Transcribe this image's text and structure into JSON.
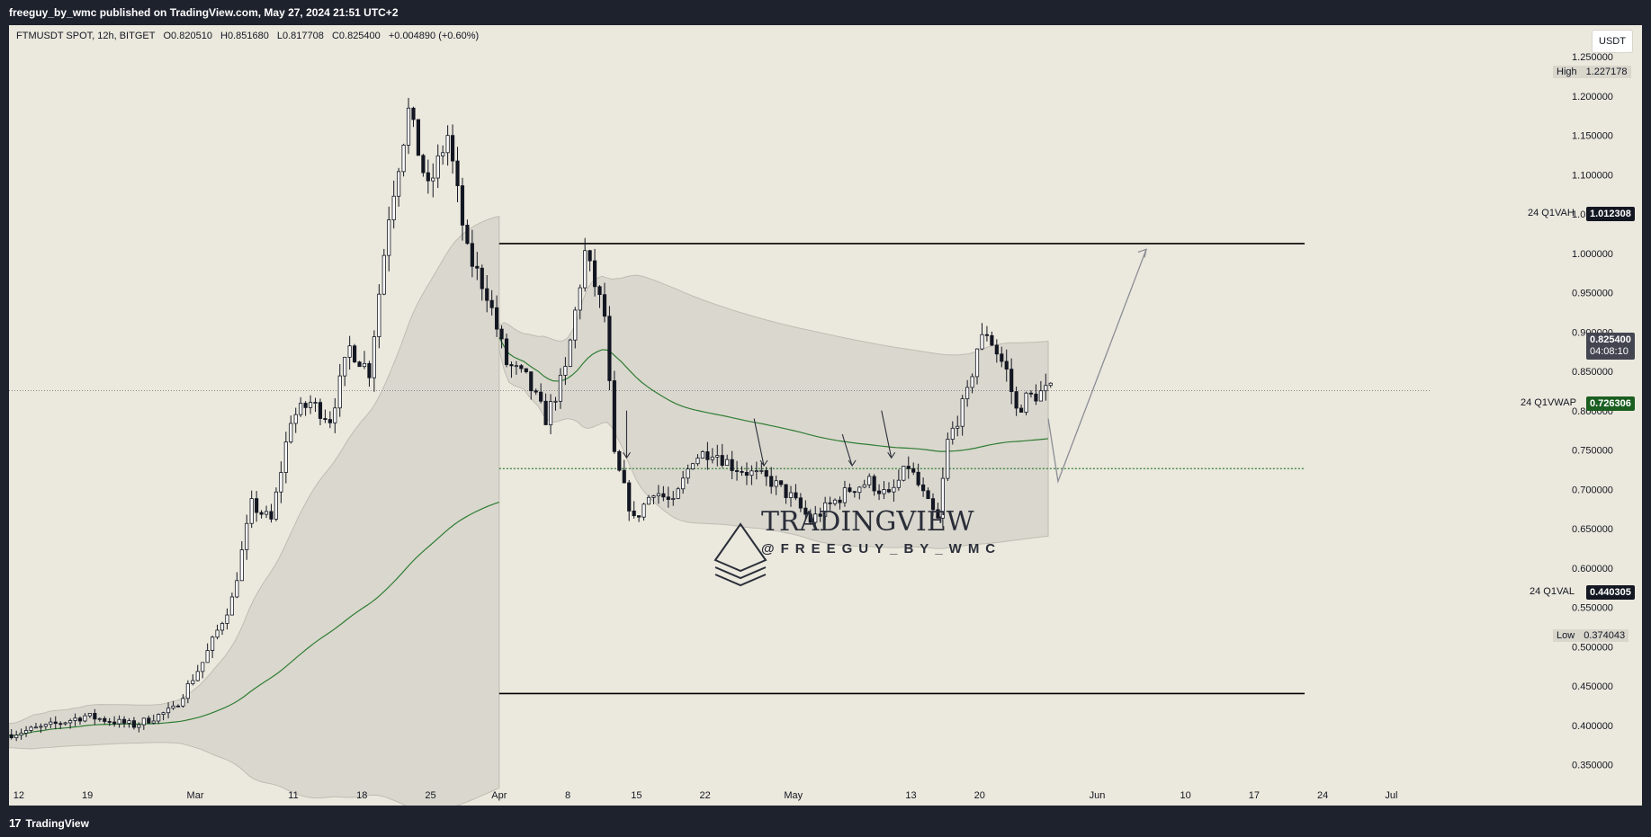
{
  "header": {
    "published_by": "freeguy_by_wmc published on TradingView.com, May 27, 2024 21:51 UTC+2"
  },
  "footer": {
    "brand": "TradingView",
    "logo_icon": "tradingview-logo-icon"
  },
  "symbol": {
    "name": "FTMUSDT SPOT, 12h, BITGET",
    "open": "O0.820510",
    "high": "H0.851680",
    "low": "L0.817708",
    "close": "C0.825400",
    "change": "+0.004890 (+0.60%)"
  },
  "currency_button": "USDT",
  "watermark": {
    "title": "TRADINGVIEW",
    "handle": "@FREEGUY_BY_WMC",
    "icon": "layered-triangle-logo-icon"
  },
  "levels": {
    "vah": {
      "label": "24 Q1VAH",
      "value": "1.012308"
    },
    "vwap": {
      "label": "24 Q1VWAP",
      "value": "0.726306"
    },
    "val": {
      "label": "24 Q1VAL",
      "value": "0.440305"
    }
  },
  "high_tag": {
    "label": "High",
    "value": "1.227178"
  },
  "low_tag": {
    "label": "Low",
    "value": "0.374043"
  },
  "last_price": {
    "value": "0.825400",
    "countdown": "04:08:10"
  },
  "colors": {
    "background": "#ebe8dd",
    "bull": "#ffffff",
    "bear": "#131722",
    "vwap_green": "#2e7d32",
    "band_fill": "#d8d5cc",
    "level_line": "#000000"
  },
  "chart_data": {
    "type": "candlestick",
    "y_scale": "linear",
    "ylim": [
      0.33,
      1.29
    ],
    "y_ticks": [
      "1.250000",
      "1.200000",
      "1.150000",
      "1.100000",
      "1.050000",
      "1.000000",
      "0.950000",
      "0.900000",
      "0.850000",
      "0.800000",
      "0.750000",
      "0.700000",
      "0.650000",
      "0.600000",
      "0.550000",
      "0.500000",
      "0.450000",
      "0.400000",
      "0.350000"
    ],
    "x_ticks": [
      "12",
      "19",
      "Mar",
      "11",
      "18",
      "25",
      "Apr",
      "8",
      "15",
      "22",
      "May",
      "13",
      "20",
      "Jun",
      "10",
      "17",
      "24",
      "Jul"
    ],
    "x_range": [
      "2024-02-11",
      "2024-07-05"
    ],
    "x_tick_dates": [
      "2024-02-12",
      "2024-02-19",
      "2024-03-01",
      "2024-03-11",
      "2024-03-18",
      "2024-03-25",
      "2024-04-01",
      "2024-04-08",
      "2024-04-15",
      "2024-04-22",
      "2024-05-01",
      "2024-05-13",
      "2024-05-20",
      "2024-06-01",
      "2024-06-10",
      "2024-06-17",
      "2024-06-24",
      "2024-07-01"
    ],
    "price_path": [
      [
        "2024-02-11",
        0.388
      ],
      [
        "2024-02-15",
        0.398
      ],
      [
        "2024-02-19",
        0.412
      ],
      [
        "2024-02-24",
        0.4
      ],
      [
        "2024-02-28",
        0.42
      ],
      [
        "2024-03-02",
        0.48
      ],
      [
        "2024-03-05",
        0.56
      ],
      [
        "2024-03-07",
        0.68
      ],
      [
        "2024-03-09",
        0.66
      ],
      [
        "2024-03-11",
        0.79
      ],
      [
        "2024-03-13",
        0.81
      ],
      [
        "2024-03-15",
        0.79
      ],
      [
        "2024-03-17",
        0.88
      ],
      [
        "2024-03-19",
        0.85
      ],
      [
        "2024-03-21",
        1.05
      ],
      [
        "2024-03-23",
        1.18
      ],
      [
        "2024-03-25",
        1.08
      ],
      [
        "2024-03-27",
        1.15
      ],
      [
        "2024-03-29",
        1.0
      ],
      [
        "2024-03-31",
        0.95
      ],
      [
        "2024-04-02",
        0.86
      ],
      [
        "2024-04-04",
        0.84
      ],
      [
        "2024-04-06",
        0.79
      ],
      [
        "2024-04-08",
        0.85
      ],
      [
        "2024-04-10",
        1.0
      ],
      [
        "2024-04-12",
        0.92
      ],
      [
        "2024-04-13",
        0.74
      ],
      [
        "2024-04-15",
        0.66
      ],
      [
        "2024-04-17",
        0.7
      ],
      [
        "2024-04-19",
        0.68
      ],
      [
        "2024-04-21",
        0.74
      ],
      [
        "2024-04-23",
        0.75
      ],
      [
        "2024-04-25",
        0.73
      ],
      [
        "2024-04-27",
        0.72
      ],
      [
        "2024-04-29",
        0.71
      ],
      [
        "2024-05-01",
        0.69
      ],
      [
        "2024-05-03",
        0.66
      ],
      [
        "2024-05-05",
        0.68
      ],
      [
        "2024-05-07",
        0.7
      ],
      [
        "2024-05-09",
        0.71
      ],
      [
        "2024-05-11",
        0.69
      ],
      [
        "2024-05-13",
        0.73
      ],
      [
        "2024-05-15",
        0.68
      ],
      [
        "2024-05-16",
        0.66
      ],
      [
        "2024-05-17",
        0.76
      ],
      [
        "2024-05-19",
        0.82
      ],
      [
        "2024-05-20",
        0.88
      ],
      [
        "2024-05-21",
        0.9
      ],
      [
        "2024-05-23",
        0.85
      ],
      [
        "2024-05-24",
        0.8
      ],
      [
        "2024-05-25",
        0.815
      ],
      [
        "2024-05-27",
        0.825
      ]
    ],
    "vwap_anchor_start": "2024-04-01",
    "vwap_anchor_end": "2024-05-27",
    "vah_range": [
      "2024-04-01",
      "2024-07-05"
    ],
    "val_range": [
      "2024-04-01",
      "2024-07-05"
    ],
    "vwap_level_range": [
      "2024-05-16",
      "2024-07-05"
    ],
    "projection_path": [
      [
        "2024-05-27",
        0.79
      ],
      [
        "2024-05-28",
        0.71
      ],
      [
        "2024-06-06",
        1.005
      ]
    ],
    "marker_arrows": [
      [
        "2024-04-14",
        0.8,
        "2024-04-14",
        0.74
      ],
      [
        "2024-04-27",
        0.79,
        "2024-04-28",
        0.73
      ],
      [
        "2024-05-06",
        0.77,
        "2024-05-07",
        0.73
      ],
      [
        "2024-05-10",
        0.8,
        "2024-05-11",
        0.74
      ]
    ]
  }
}
